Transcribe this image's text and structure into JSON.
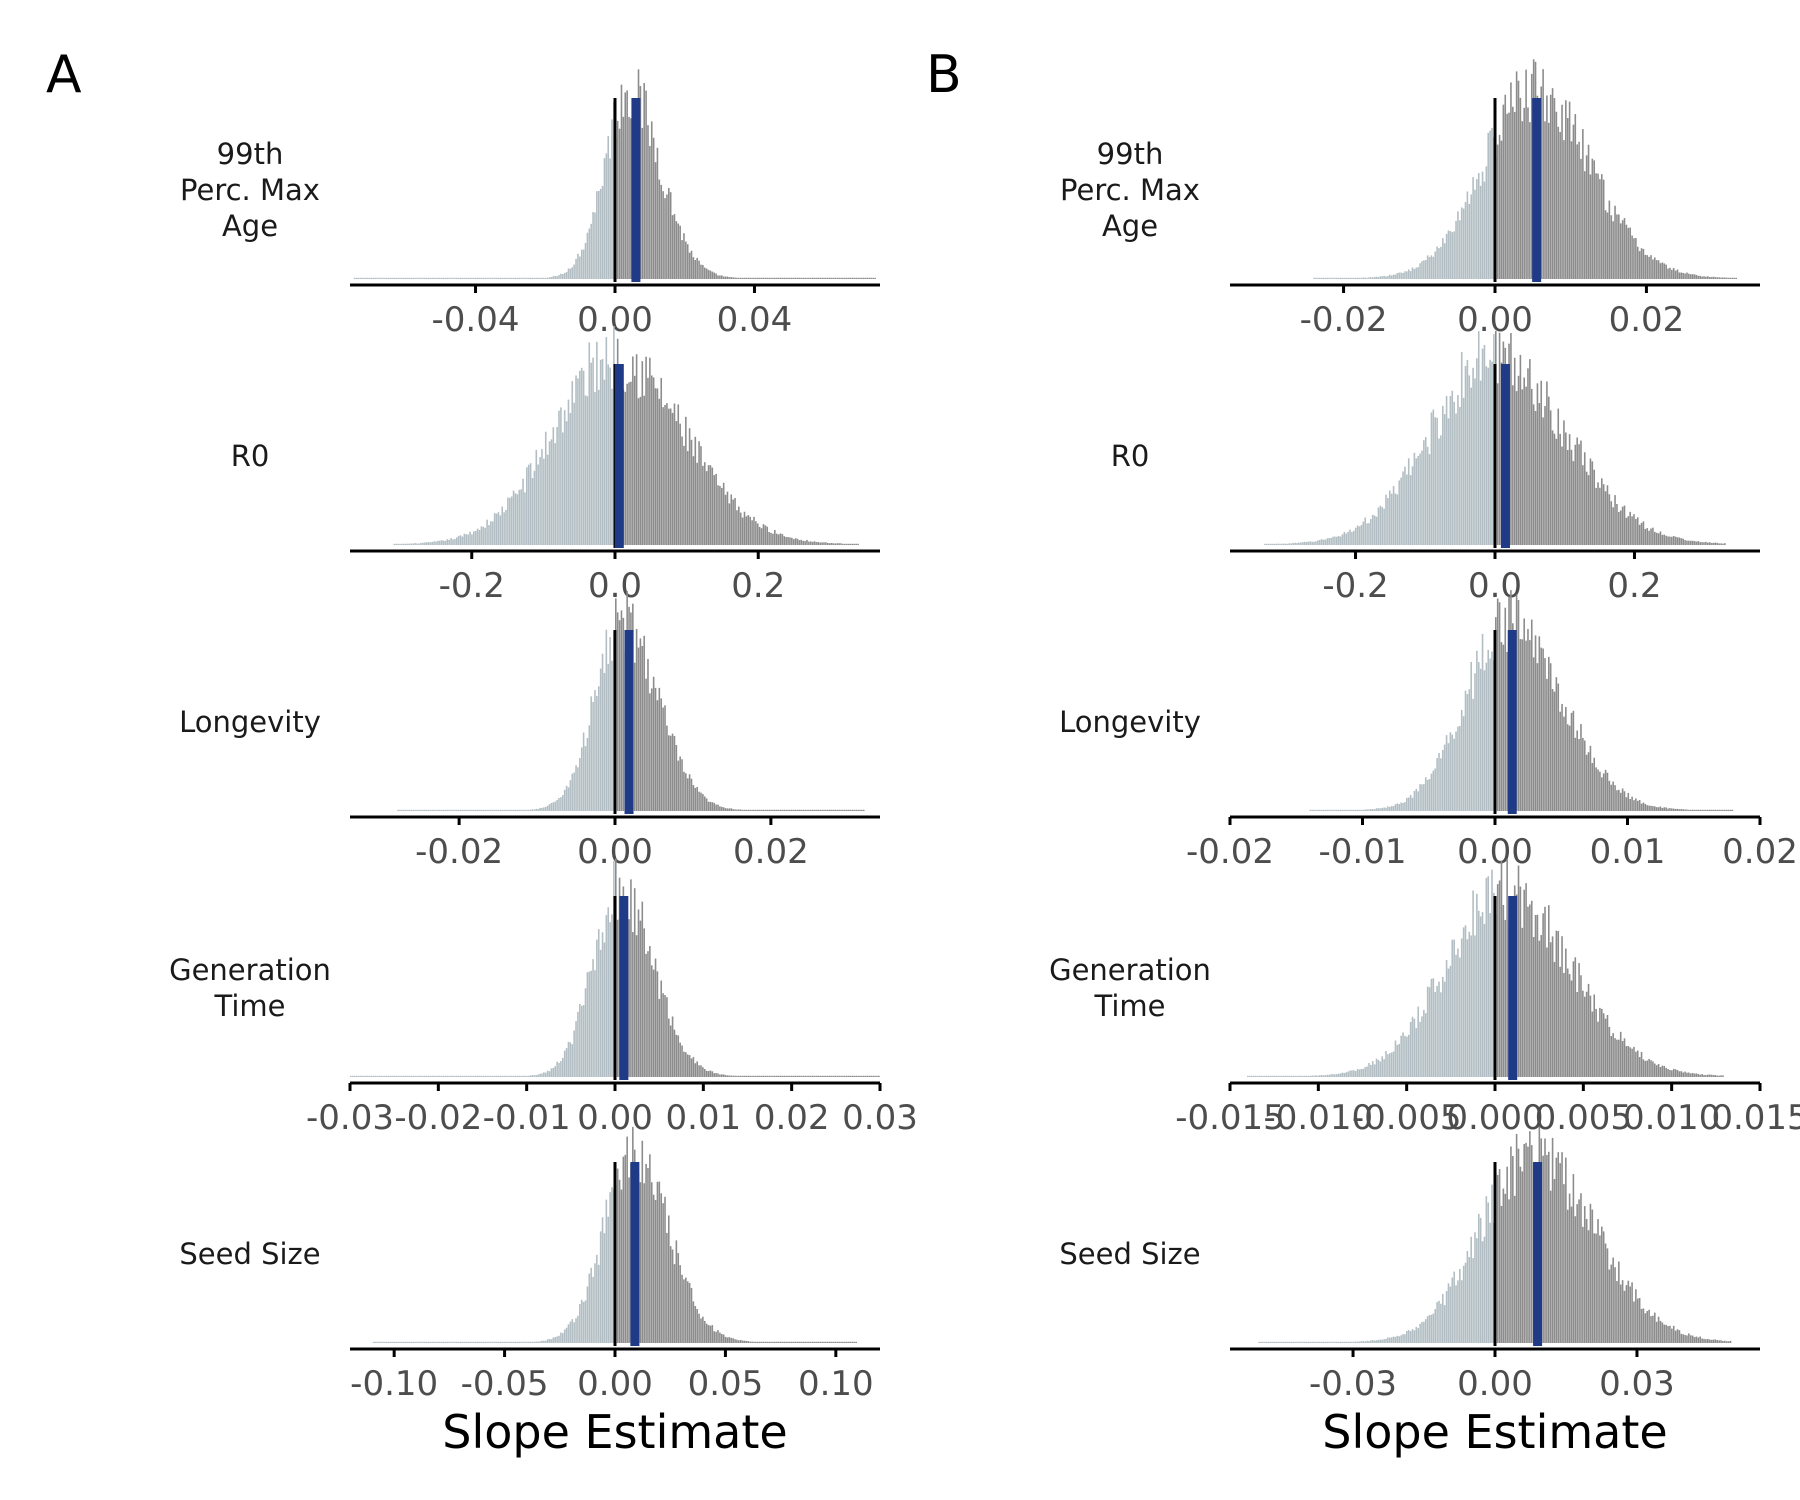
{
  "panels": [
    {
      "label": "A",
      "xlabel": "Slope Estimate"
    },
    {
      "label": "B",
      "xlabel": "Slope Estimate"
    }
  ],
  "colors": {
    "below_zero": "#b2bec3",
    "above_zero": "#8c8c8c",
    "estimate_line": "#1f3a86",
    "zero_line": "#000000",
    "axis": "#000000"
  },
  "chart_data": [
    {
      "type": "histogram",
      "panel": "A",
      "row_label": "99th\nPerc. Max\nAge",
      "xlim": [
        -0.076,
        0.076
      ],
      "ticks": [
        -0.04,
        0.0,
        0.04
      ],
      "tick_labels": [
        "-0.04",
        "0.00",
        "0.04"
      ],
      "distribution": {
        "mode": 0.004,
        "sd_left": 0.007,
        "sd_right": 0.009,
        "range": [
          -0.075,
          0.075
        ]
      },
      "zero_line": 0.0,
      "estimate": 0.006
    },
    {
      "type": "histogram",
      "panel": "A",
      "row_label": "R0",
      "xlim": [
        -0.37,
        0.37
      ],
      "ticks": [
        -0.2,
        0.0,
        0.2
      ],
      "tick_labels": [
        "-0.2",
        "0.0",
        "0.2"
      ],
      "distribution": {
        "mode": 0.0,
        "sd_left": 0.085,
        "sd_right": 0.095,
        "range": [
          -0.31,
          0.34
        ]
      },
      "zero_line": 0.0,
      "estimate": 0.006
    },
    {
      "type": "histogram",
      "panel": "A",
      "row_label": "Longevity",
      "xlim": [
        -0.034,
        0.034
      ],
      "ticks": [
        -0.02,
        0.0,
        0.02
      ],
      "tick_labels": [
        "-0.02",
        "0.00",
        "0.02"
      ],
      "distribution": {
        "mode": 0.001,
        "sd_left": 0.0035,
        "sd_right": 0.0045,
        "range": [
          -0.028,
          0.032
        ]
      },
      "zero_line": 0.0,
      "estimate": 0.0018
    },
    {
      "type": "histogram",
      "panel": "A",
      "row_label": "Generation\nTime",
      "xlim": [
        -0.03,
        0.03
      ],
      "ticks": [
        -0.03,
        -0.02,
        -0.01,
        0.0,
        0.01,
        0.02,
        0.03
      ],
      "tick_labels": [
        "-0.03",
        "-0.02",
        "-0.01",
        "0.00",
        "0.01",
        "0.02",
        "0.03"
      ],
      "distribution": {
        "mode": 0.0005,
        "sd_left": 0.003,
        "sd_right": 0.0038,
        "range": [
          -0.03,
          0.03
        ]
      },
      "zero_line": 0.0,
      "estimate": 0.001
    },
    {
      "type": "histogram",
      "panel": "A",
      "row_label": "Seed Size",
      "xlim": [
        -0.12,
        0.12
      ],
      "ticks": [
        -0.1,
        -0.05,
        0.0,
        0.05,
        0.1
      ],
      "tick_labels": [
        "-0.10",
        "-0.05",
        "0.00",
        "0.05",
        "0.10"
      ],
      "distribution": {
        "mode": 0.008,
        "sd_left": 0.013,
        "sd_right": 0.016,
        "range": [
          -0.11,
          0.11
        ]
      },
      "zero_line": 0.0,
      "estimate": 0.009
    },
    {
      "type": "histogram",
      "panel": "B",
      "row_label": "99th\nPerc. Max\nAge",
      "xlim": [
        -0.035,
        0.035
      ],
      "ticks": [
        -0.02,
        0.0,
        0.02
      ],
      "tick_labels": [
        "-0.02",
        "0.00",
        "0.02"
      ],
      "distribution": {
        "mode": 0.005,
        "sd_left": 0.0065,
        "sd_right": 0.0075,
        "range": [
          -0.024,
          0.032
        ]
      },
      "zero_line": 0.0,
      "estimate": 0.0055
    },
    {
      "type": "histogram",
      "panel": "B",
      "row_label": "R0",
      "xlim": [
        -0.38,
        0.38
      ],
      "ticks": [
        -0.2,
        0.0,
        0.2
      ],
      "tick_labels": [
        "-0.2",
        "0.0",
        "0.2"
      ],
      "distribution": {
        "mode": 0.0,
        "sd_left": 0.09,
        "sd_right": 0.1,
        "range": [
          -0.33,
          0.33
        ]
      },
      "zero_line": 0.0,
      "estimate": 0.015
    },
    {
      "type": "histogram",
      "panel": "B",
      "row_label": "Longevity",
      "xlim": [
        -0.02,
        0.02
      ],
      "ticks": [
        -0.02,
        -0.01,
        0.0,
        0.01,
        0.02
      ],
      "tick_labels": [
        "-0.02",
        "-0.01",
        "0.00",
        "0.01",
        "0.02"
      ],
      "distribution": {
        "mode": 0.001,
        "sd_left": 0.0032,
        "sd_right": 0.004,
        "range": [
          -0.014,
          0.018
        ]
      },
      "zero_line": 0.0,
      "estimate": 0.0013
    },
    {
      "type": "histogram",
      "panel": "B",
      "row_label": "Generation\nTime",
      "xlim": [
        -0.015,
        0.015
      ],
      "ticks": [
        -0.015,
        -0.01,
        -0.005,
        0.0,
        0.005,
        0.01,
        0.015
      ],
      "tick_labels": [
        "-0.015",
        "-0.010",
        "-0.005",
        "0.000",
        "0.005",
        "0.010",
        "0.015"
      ],
      "distribution": {
        "mode": 0.0005,
        "sd_left": 0.0032,
        "sd_right": 0.0037,
        "range": [
          -0.014,
          0.013
        ]
      },
      "zero_line": 0.0,
      "estimate": 0.001
    },
    {
      "type": "histogram",
      "panel": "B",
      "row_label": "Seed Size",
      "xlim": [
        -0.056,
        0.056
      ],
      "ticks": [
        -0.03,
        0.0,
        0.03
      ],
      "tick_labels": [
        "-0.03",
        "0.00",
        "0.03"
      ],
      "distribution": {
        "mode": 0.008,
        "sd_left": 0.011,
        "sd_right": 0.013,
        "range": [
          -0.05,
          0.05
        ]
      },
      "zero_line": 0.0,
      "estimate": 0.009
    }
  ]
}
